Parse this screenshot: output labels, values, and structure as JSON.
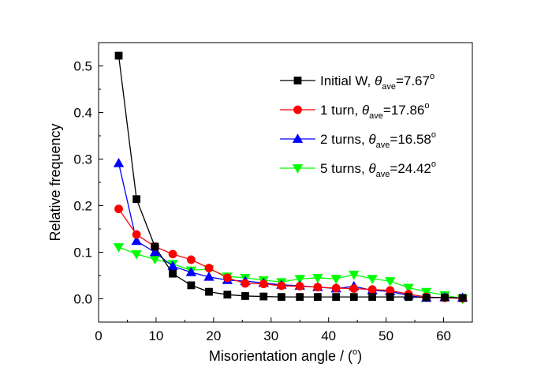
{
  "chart_data": {
    "type": "line",
    "xlabel": "Misorientation angle / (",
    "xlabel_sup": "o",
    "xlabel_close": ")",
    "ylabel": "Relative frequency",
    "xlim": [
      0,
      65
    ],
    "ylim": [
      -0.05,
      0.55
    ],
    "xticks": [
      "0",
      "10",
      "20",
      "30",
      "40",
      "50",
      "60"
    ],
    "yticks": [
      "0.0",
      "0.1",
      "0.2",
      "0.3",
      "0.4",
      "0.5"
    ],
    "x": [
      3.5,
      6.6,
      9.8,
      12.9,
      16.1,
      19.2,
      22.4,
      25.5,
      28.7,
      31.8,
      35.0,
      38.1,
      41.3,
      44.4,
      47.6,
      50.7,
      53.9,
      57.0,
      60.2,
      63.3
    ],
    "legend_position": "top-right",
    "series": [
      {
        "name": "Initial W, ",
        "theta": "θ",
        "sub": "ave",
        "value": "=7.67",
        "sup": "o",
        "color": "#000000",
        "marker": "square",
        "values": [
          0.522,
          0.214,
          0.112,
          0.054,
          0.029,
          0.015,
          0.009,
          0.006,
          0.005,
          0.004,
          0.004,
          0.004,
          0.004,
          0.004,
          0.004,
          0.004,
          0.004,
          0.003,
          0.003,
          0.002
        ]
      },
      {
        "name": "1 turn, ",
        "theta": "θ",
        "sub": "ave",
        "value": "=17.86",
        "sup": "o",
        "color": "#ff0000",
        "marker": "circle",
        "values": [
          0.193,
          0.138,
          0.112,
          0.096,
          0.084,
          0.066,
          0.045,
          0.033,
          0.032,
          0.028,
          0.027,
          0.025,
          0.023,
          0.022,
          0.02,
          0.018,
          0.01,
          0.004,
          0.002,
          0.001
        ]
      },
      {
        "name": "2 turns, ",
        "theta": "θ",
        "sub": "ave",
        "value": "=16.58",
        "sup": "o",
        "color": "#0000ff",
        "marker": "triangle-up",
        "values": [
          0.291,
          0.124,
          0.1,
          0.07,
          0.057,
          0.047,
          0.04,
          0.038,
          0.034,
          0.03,
          0.028,
          0.025,
          0.022,
          0.027,
          0.018,
          0.016,
          0.007,
          0.002,
          0.003,
          0.002
        ]
      },
      {
        "name": "5 turns, ",
        "theta": "θ",
        "sub": "ave",
        "value": "=24.42",
        "sup": "o",
        "color": "#00ff00",
        "marker": "triangle-down",
        "values": [
          0.111,
          0.096,
          0.085,
          0.075,
          0.061,
          0.064,
          0.048,
          0.045,
          0.04,
          0.036,
          0.043,
          0.045,
          0.043,
          0.052,
          0.043,
          0.038,
          0.024,
          0.015,
          0.008,
          0.0
        ]
      }
    ]
  }
}
